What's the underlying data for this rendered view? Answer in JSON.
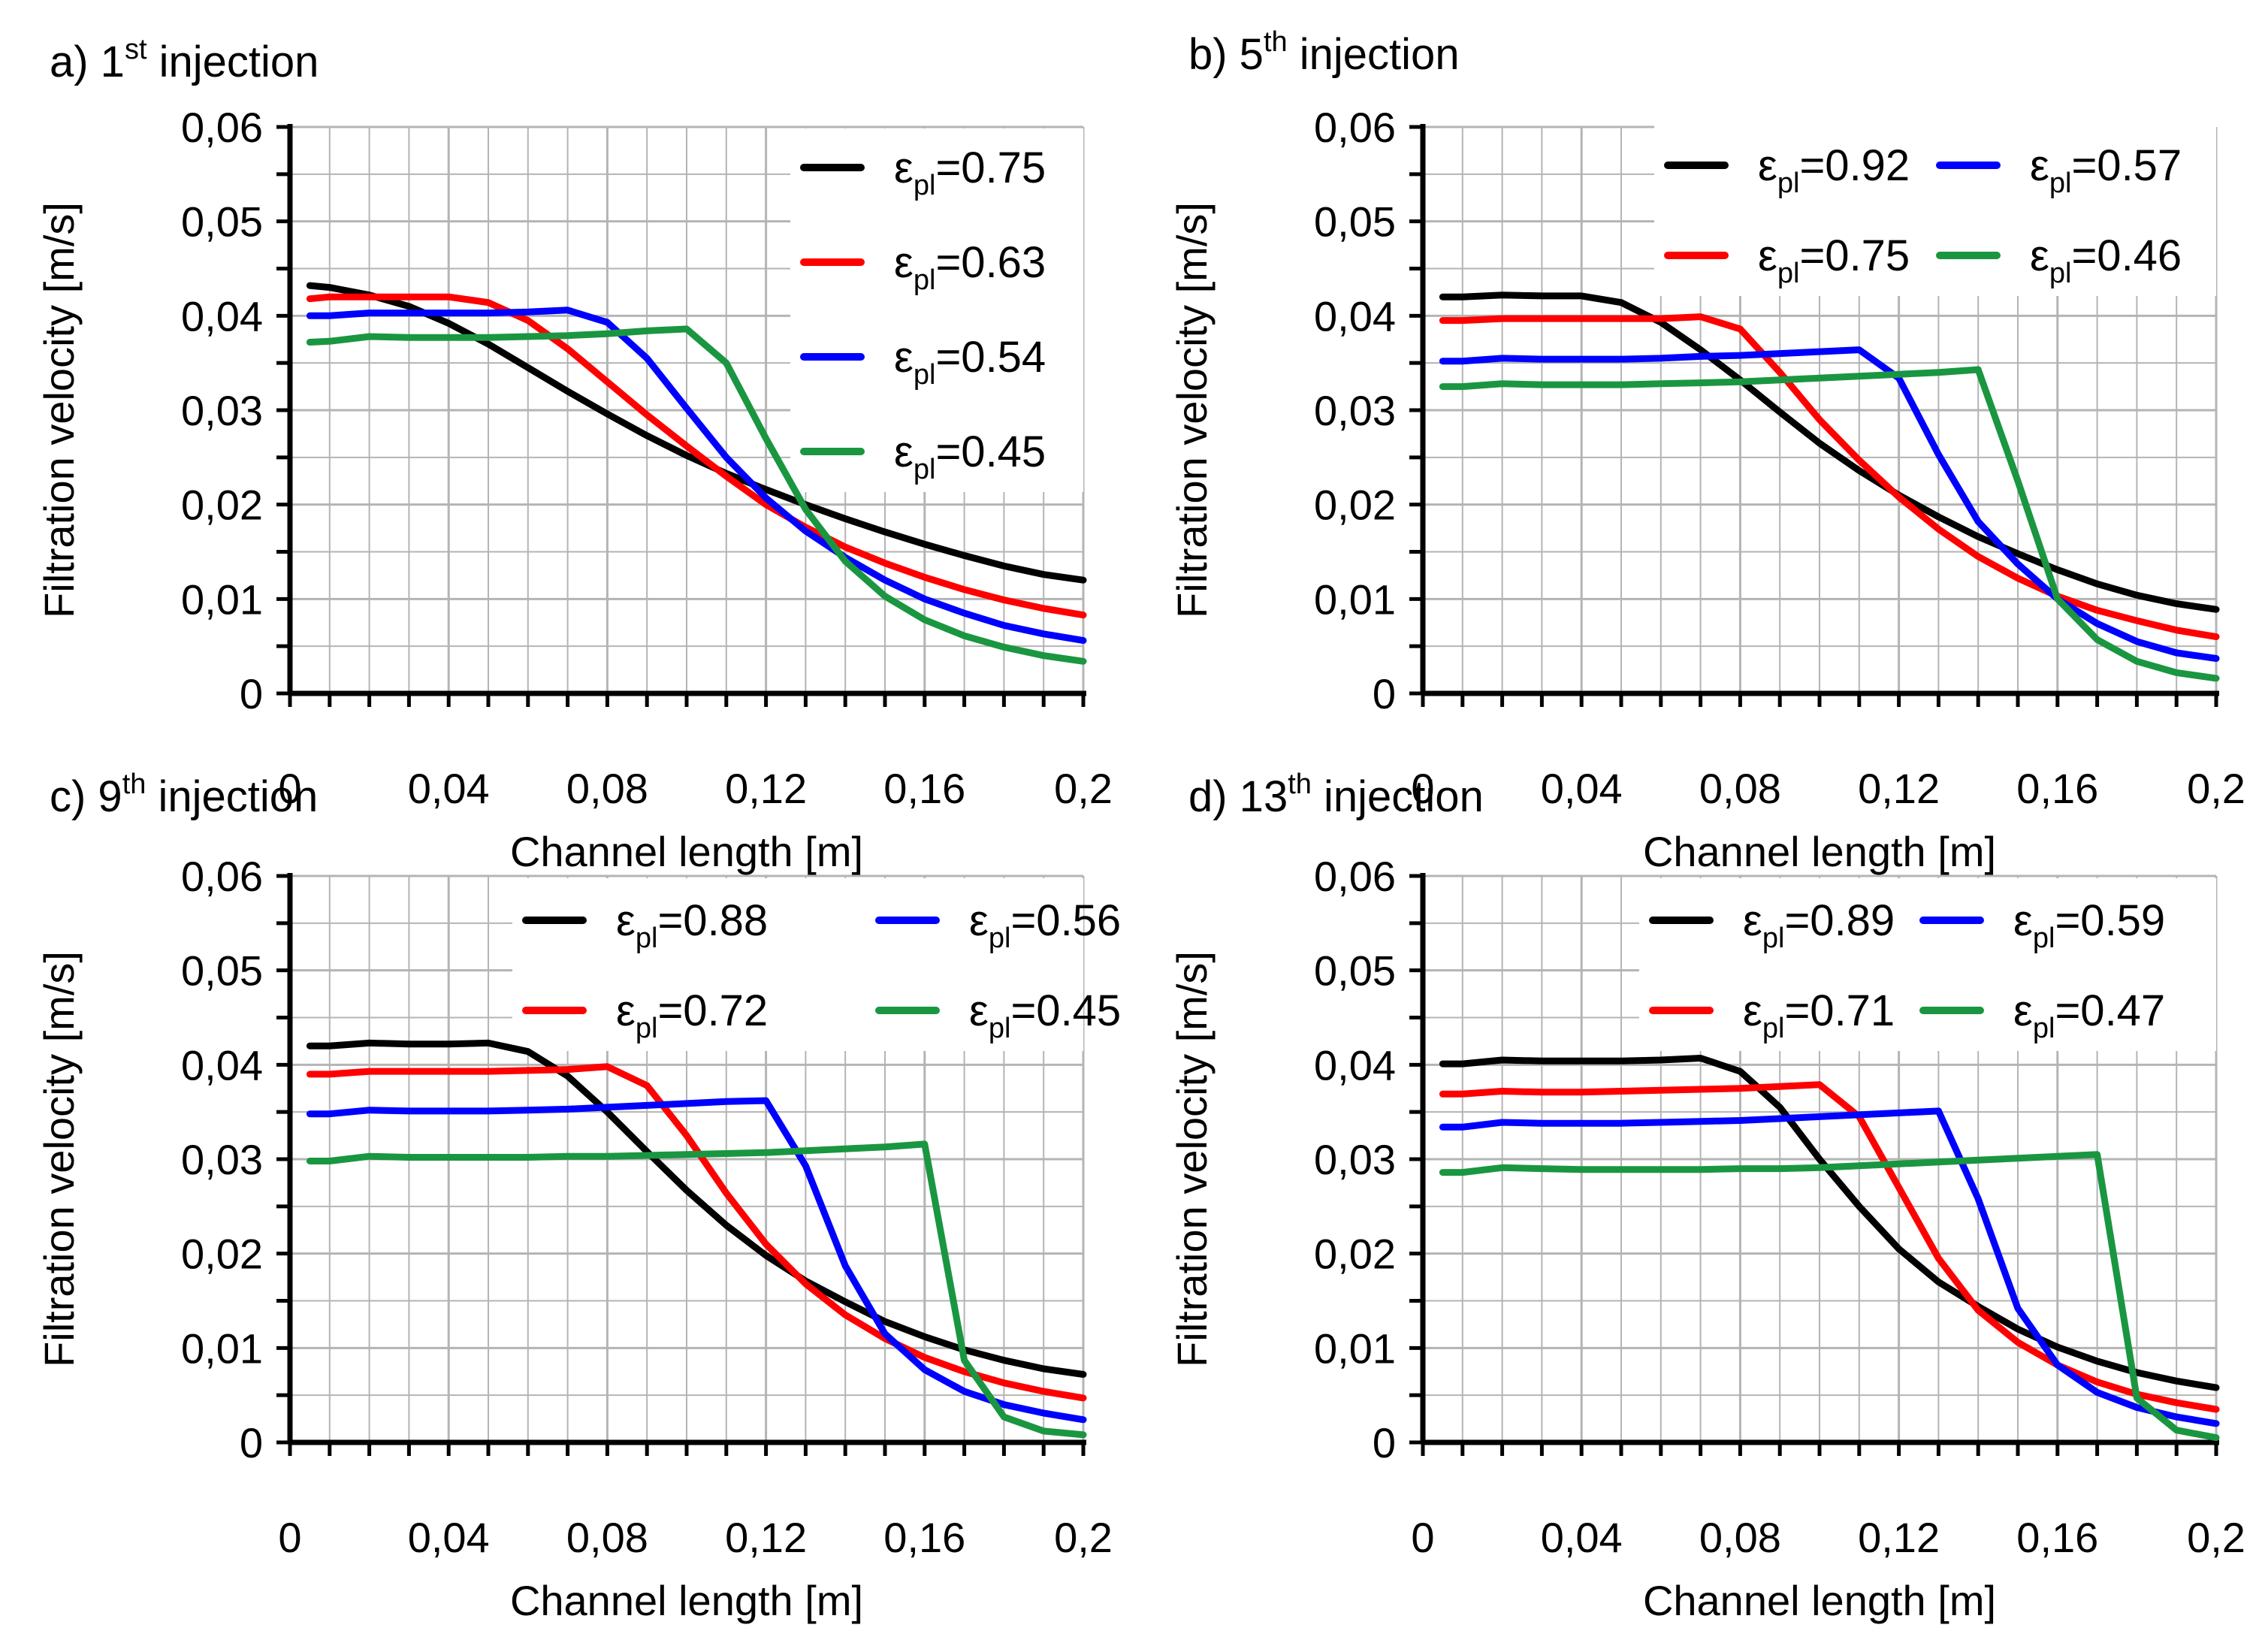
{
  "figure": {
    "x_values": [
      0.005,
      0.01,
      0.02,
      0.03,
      0.04,
      0.05,
      0.06,
      0.07,
      0.08,
      0.09,
      0.1,
      0.11,
      0.12,
      0.13,
      0.14,
      0.15,
      0.16,
      0.17,
      0.18,
      0.19,
      0.2
    ]
  },
  "colors": {
    "black": "#000000",
    "red": "#ff0000",
    "blue": "#0000ff",
    "green": "#1a9641",
    "grid": "#b4b4b4"
  },
  "chart_data": [
    {
      "type": "line",
      "panel": "a",
      "title": {
        "prefix": "a) 1",
        "sup": "st",
        "suffix": " injection"
      },
      "xlabel": "Channel length [m]",
      "ylabel": "Filtration velocity [m/s]",
      "xlim": [
        0,
        0.2
      ],
      "ylim": [
        0,
        0.06
      ],
      "xticks": [
        "0",
        "0,04",
        "0,08",
        "0,12",
        "0,16",
        "0,2"
      ],
      "yticks": [
        "0",
        "0,01",
        "0,02",
        "0,03",
        "0,04",
        "0,05",
        "0,06"
      ],
      "legend_position": "top-right",
      "legend_layout": "single-column",
      "series": [
        {
          "name": "εpl=0.75",
          "eps": "ε",
          "sub": "pl",
          "val": "=0.75",
          "color": "#000000",
          "values": [
            0.0432,
            0.043,
            0.0422,
            0.041,
            0.0392,
            0.037,
            0.0345,
            0.032,
            0.0296,
            0.0273,
            0.0252,
            0.0233,
            0.0216,
            0.02,
            0.0185,
            0.0171,
            0.0158,
            0.0146,
            0.0135,
            0.0126,
            0.012
          ]
        },
        {
          "name": "εpl=0.63",
          "eps": "ε",
          "sub": "pl",
          "val": "=0.63",
          "color": "#ff0000",
          "values": [
            0.0418,
            0.042,
            0.042,
            0.042,
            0.042,
            0.0414,
            0.0395,
            0.0365,
            0.033,
            0.0295,
            0.0262,
            0.023,
            0.02,
            0.0176,
            0.0155,
            0.0138,
            0.0123,
            0.011,
            0.0099,
            0.009,
            0.0083
          ]
        },
        {
          "name": "εpl=0.54",
          "eps": "ε",
          "sub": "pl",
          "val": "=0.54",
          "color": "#0000ff",
          "values": [
            0.04,
            0.04,
            0.0403,
            0.0403,
            0.0403,
            0.0403,
            0.0404,
            0.0406,
            0.0393,
            0.0355,
            0.0302,
            0.025,
            0.0207,
            0.0172,
            0.0144,
            0.012,
            0.01,
            0.0085,
            0.0072,
            0.0063,
            0.0056
          ]
        },
        {
          "name": "εpl=0.45",
          "eps": "ε",
          "sub": "pl",
          "val": "=0.45",
          "color": "#1a9641",
          "values": [
            0.0372,
            0.0373,
            0.0378,
            0.0377,
            0.0377,
            0.0377,
            0.0378,
            0.0379,
            0.0381,
            0.0384,
            0.0386,
            0.035,
            0.027,
            0.0195,
            0.014,
            0.0103,
            0.0078,
            0.0061,
            0.0049,
            0.004,
            0.0034
          ]
        }
      ]
    },
    {
      "type": "line",
      "panel": "b",
      "title": {
        "prefix": "b) 5",
        "sup": "th",
        "suffix": " injection"
      },
      "xlabel": "Channel length [m]",
      "ylabel": "Filtration velocity [m/s]",
      "xlim": [
        0,
        0.2
      ],
      "ylim": [
        0,
        0.06
      ],
      "xticks": [
        "0",
        "0,04",
        "0,08",
        "0,12",
        "0,16",
        "0,2"
      ],
      "yticks": [
        "0",
        "0,01",
        "0,02",
        "0,03",
        "0,04",
        "0,05",
        "0,06"
      ],
      "legend_position": "top-right",
      "legend_layout": "two-column",
      "series": [
        {
          "name": "εpl=0.92",
          "eps": "ε",
          "sub": "pl",
          "val": "=0.92",
          "color": "#000000",
          "values": [
            0.042,
            0.042,
            0.0422,
            0.0421,
            0.0421,
            0.0414,
            0.0393,
            0.0364,
            0.0332,
            0.0298,
            0.0265,
            0.0236,
            0.021,
            0.0187,
            0.0166,
            0.0148,
            0.0131,
            0.0116,
            0.0104,
            0.0095,
            0.0089
          ]
        },
        {
          "name": "εpl=0.75",
          "eps": "ε",
          "sub": "pl",
          "val": "=0.75",
          "color": "#ff0000",
          "values": [
            0.0395,
            0.0395,
            0.0397,
            0.0397,
            0.0397,
            0.0397,
            0.0397,
            0.0399,
            0.0386,
            0.034,
            0.029,
            0.0247,
            0.0208,
            0.0174,
            0.0145,
            0.0122,
            0.0103,
            0.0088,
            0.0077,
            0.0067,
            0.006
          ]
        },
        {
          "name": "εpl=0.57",
          "eps": "ε",
          "sub": "pl",
          "val": "=0.57",
          "color": "#0000ff",
          "values": [
            0.0352,
            0.0352,
            0.0355,
            0.0354,
            0.0354,
            0.0354,
            0.0355,
            0.0357,
            0.0358,
            0.036,
            0.0362,
            0.0364,
            0.0334,
            0.0253,
            0.0182,
            0.0137,
            0.01,
            0.0074,
            0.0055,
            0.0043,
            0.0037
          ]
        },
        {
          "name": "εpl=0.46",
          "eps": "ε",
          "sub": "pl",
          "val": "=0.46",
          "color": "#1a9641",
          "values": [
            0.0325,
            0.0325,
            0.0328,
            0.0327,
            0.0327,
            0.0327,
            0.0328,
            0.0329,
            0.033,
            0.0332,
            0.0334,
            0.0336,
            0.0338,
            0.034,
            0.0343,
            0.0225,
            0.01,
            0.0057,
            0.0034,
            0.0022,
            0.0016
          ]
        }
      ]
    },
    {
      "type": "line",
      "panel": "c",
      "title": {
        "prefix": "c) 9",
        "sup": "th",
        "suffix": " injection"
      },
      "xlabel": "Channel length [m]",
      "ylabel": "Filtration velocity [m/s]",
      "xlim": [
        0,
        0.2
      ],
      "ylim": [
        0,
        0.06
      ],
      "xticks": [
        "0",
        "0,04",
        "0,08",
        "0,12",
        "0,16",
        "0,2"
      ],
      "yticks": [
        "0",
        "0,01",
        "0,02",
        "0,03",
        "0,04",
        "0,05",
        "0,06"
      ],
      "legend_position": "top-right",
      "legend_layout": "two-column",
      "series": [
        {
          "name": "εpl=0.88",
          "eps": "ε",
          "sub": "pl",
          "val": "=0.88",
          "color": "#000000",
          "values": [
            0.042,
            0.042,
            0.0423,
            0.0422,
            0.0422,
            0.0423,
            0.0414,
            0.0388,
            0.035,
            0.0308,
            0.0267,
            0.023,
            0.0198,
            0.0171,
            0.0149,
            0.0128,
            0.0112,
            0.0098,
            0.0087,
            0.0078,
            0.0072
          ]
        },
        {
          "name": "εpl=0.72",
          "eps": "ε",
          "sub": "pl",
          "val": "=0.72",
          "color": "#ff0000",
          "values": [
            0.039,
            0.039,
            0.0393,
            0.0393,
            0.0393,
            0.0393,
            0.0394,
            0.0395,
            0.0398,
            0.0378,
            0.0325,
            0.0264,
            0.021,
            0.0168,
            0.0135,
            0.011,
            0.009,
            0.0075,
            0.0063,
            0.0054,
            0.0047
          ]
        },
        {
          "name": "εpl=0.56",
          "eps": "ε",
          "sub": "pl",
          "val": "=0.56",
          "color": "#0000ff",
          "values": [
            0.0348,
            0.0348,
            0.0352,
            0.0351,
            0.0351,
            0.0351,
            0.0352,
            0.0353,
            0.0355,
            0.0357,
            0.0359,
            0.0361,
            0.0362,
            0.0293,
            0.0187,
            0.0115,
            0.0077,
            0.0054,
            0.004,
            0.0031,
            0.0024
          ]
        },
        {
          "name": "εpl=0.45",
          "eps": "ε",
          "sub": "pl",
          "val": "=0.45",
          "color": "#1a9641",
          "values": [
            0.0298,
            0.0298,
            0.0303,
            0.0302,
            0.0302,
            0.0302,
            0.0302,
            0.0303,
            0.0303,
            0.0304,
            0.0305,
            0.0306,
            0.0307,
            0.0309,
            0.0311,
            0.0313,
            0.0316,
            0.0087,
            0.0027,
            0.0012,
            0.0008
          ]
        }
      ]
    },
    {
      "type": "line",
      "panel": "d",
      "title": {
        "prefix": "d) 13",
        "sup": "th",
        "suffix": " injection"
      },
      "xlabel": "Channel length [m]",
      "ylabel": "Filtration velocity [m/s]",
      "xlim": [
        0,
        0.2
      ],
      "ylim": [
        0,
        0.06
      ],
      "xticks": [
        "0",
        "0,04",
        "0,08",
        "0,12",
        "0,16",
        "0,2"
      ],
      "yticks": [
        "0",
        "0,01",
        "0,02",
        "0,03",
        "0,04",
        "0,05",
        "0,06"
      ],
      "legend_position": "top-right",
      "legend_layout": "two-column",
      "series": [
        {
          "name": "εpl=0.89",
          "eps": "ε",
          "sub": "pl",
          "val": "=0.89",
          "color": "#000000",
          "values": [
            0.0401,
            0.0401,
            0.0405,
            0.0404,
            0.0404,
            0.0404,
            0.0405,
            0.0407,
            0.0393,
            0.0355,
            0.03,
            0.025,
            0.0205,
            0.017,
            0.0144,
            0.012,
            0.0101,
            0.0086,
            0.0074,
            0.0065,
            0.0058
          ]
        },
        {
          "name": "εpl=0.71",
          "eps": "ε",
          "sub": "pl",
          "val": "=0.71",
          "color": "#ff0000",
          "values": [
            0.0369,
            0.0369,
            0.0372,
            0.0371,
            0.0371,
            0.0372,
            0.0373,
            0.0374,
            0.0375,
            0.0377,
            0.0379,
            0.0345,
            0.027,
            0.0195,
            0.014,
            0.0106,
            0.0082,
            0.0064,
            0.0051,
            0.0042,
            0.0035
          ]
        },
        {
          "name": "εpl=0.59",
          "eps": "ε",
          "sub": "pl",
          "val": "=0.59",
          "color": "#0000ff",
          "values": [
            0.0334,
            0.0334,
            0.0339,
            0.0338,
            0.0338,
            0.0338,
            0.0339,
            0.034,
            0.0341,
            0.0343,
            0.0345,
            0.0347,
            0.0349,
            0.0351,
            0.0258,
            0.0142,
            0.0082,
            0.0053,
            0.0037,
            0.0027,
            0.002
          ]
        },
        {
          "name": "εpl=0.47",
          "eps": "ε",
          "sub": "pl",
          "val": "=0.47",
          "color": "#1a9641",
          "values": [
            0.0286,
            0.0286,
            0.0291,
            0.029,
            0.0289,
            0.0289,
            0.0289,
            0.0289,
            0.029,
            0.029,
            0.0291,
            0.0293,
            0.0295,
            0.0297,
            0.0299,
            0.0301,
            0.0303,
            0.0305,
            0.0047,
            0.0013,
            0.0005
          ]
        }
      ]
    }
  ]
}
